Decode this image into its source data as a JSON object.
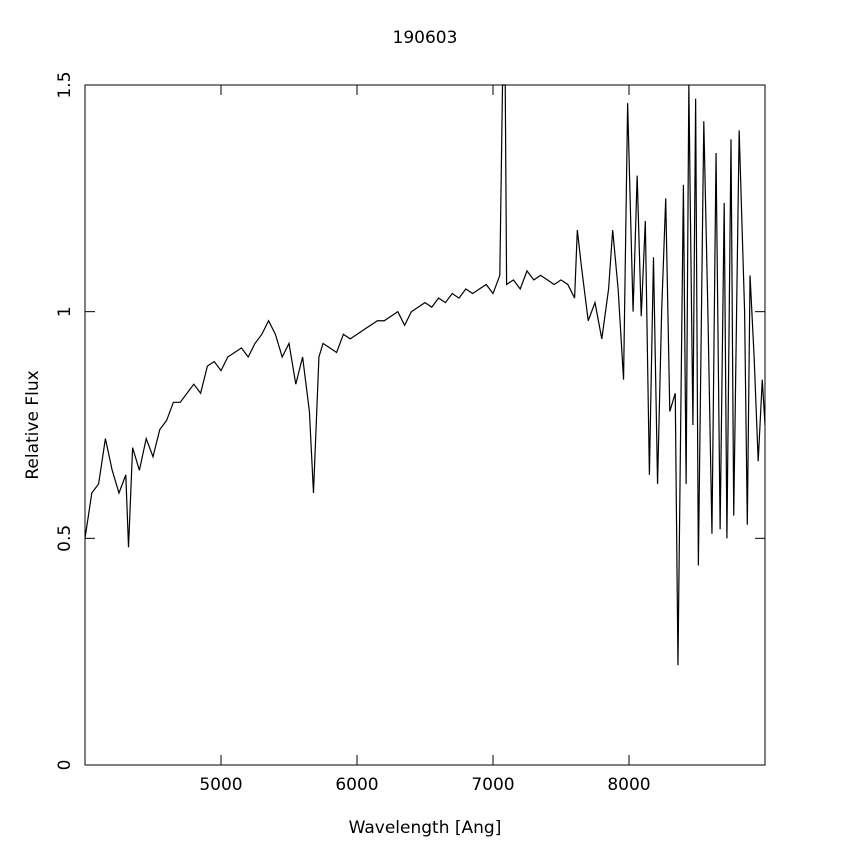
{
  "chart_data": {
    "type": "line",
    "title": "190603",
    "xlabel": "Wavelength [Ang]",
    "ylabel": "Relative Flux",
    "xlim": [
      4000,
      9000
    ],
    "ylim": [
      0,
      1.5
    ],
    "xticks": [
      5000,
      6000,
      7000,
      8000
    ],
    "yticks": [
      0,
      0.5,
      1,
      1.5
    ],
    "series": [
      {
        "color": "#000000",
        "x": [
          4000,
          4050,
          4100,
          4150,
          4200,
          4250,
          4300,
          4320,
          4350,
          4400,
          4450,
          4500,
          4550,
          4600,
          4650,
          4700,
          4750,
          4800,
          4850,
          4900,
          4950,
          5000,
          5050,
          5100,
          5150,
          5200,
          5250,
          5300,
          5350,
          5400,
          5450,
          5500,
          5550,
          5600,
          5650,
          5680,
          5720,
          5750,
          5800,
          5850,
          5900,
          5950,
          6000,
          6050,
          6100,
          6150,
          6200,
          6250,
          6300,
          6350,
          6400,
          6450,
          6500,
          6550,
          6600,
          6650,
          6700,
          6750,
          6800,
          6850,
          6900,
          6950,
          7000,
          7050,
          7070,
          7090,
          7100,
          7150,
          7200,
          7250,
          7300,
          7350,
          7400,
          7450,
          7500,
          7550,
          7600,
          7620,
          7650,
          7700,
          7750,
          7800,
          7850,
          7880,
          7920,
          7960,
          7990,
          8030,
          8060,
          8090,
          8120,
          8150,
          8180,
          8210,
          8240,
          8270,
          8300,
          8340,
          8360,
          8400,
          8420,
          8440,
          8470,
          8490,
          8510,
          8550,
          8580,
          8610,
          8640,
          8670,
          8700,
          8720,
          8750,
          8770,
          8810,
          8850,
          8870,
          8890,
          8920,
          8950,
          8980,
          9000
        ],
        "values": [
          0.5,
          0.6,
          0.62,
          0.72,
          0.65,
          0.6,
          0.64,
          0.48,
          0.7,
          0.65,
          0.72,
          0.68,
          0.74,
          0.76,
          0.8,
          0.8,
          0.82,
          0.84,
          0.82,
          0.88,
          0.89,
          0.87,
          0.9,
          0.91,
          0.92,
          0.9,
          0.93,
          0.95,
          0.98,
          0.95,
          0.9,
          0.93,
          0.84,
          0.9,
          0.78,
          0.6,
          0.9,
          0.93,
          0.92,
          0.91,
          0.95,
          0.94,
          0.95,
          0.96,
          0.97,
          0.98,
          0.98,
          0.99,
          1.0,
          0.97,
          1.0,
          1.01,
          1.02,
          1.01,
          1.03,
          1.02,
          1.04,
          1.03,
          1.05,
          1.04,
          1.05,
          1.06,
          1.04,
          1.08,
          1.5,
          1.5,
          1.06,
          1.07,
          1.05,
          1.09,
          1.07,
          1.08,
          1.07,
          1.06,
          1.07,
          1.06,
          1.03,
          1.18,
          1.1,
          0.98,
          1.02,
          0.94,
          1.05,
          1.18,
          1.05,
          0.85,
          1.46,
          1.0,
          1.3,
          0.99,
          1.2,
          0.64,
          1.12,
          0.62,
          1.0,
          1.25,
          0.78,
          0.82,
          0.22,
          1.28,
          0.62,
          1.5,
          0.75,
          1.47,
          0.44,
          1.42,
          1.0,
          0.51,
          1.35,
          0.52,
          1.24,
          0.5,
          1.38,
          0.55,
          1.4,
          1.0,
          0.53,
          1.08,
          0.9,
          0.67,
          0.85,
          0.75
        ]
      }
    ]
  }
}
